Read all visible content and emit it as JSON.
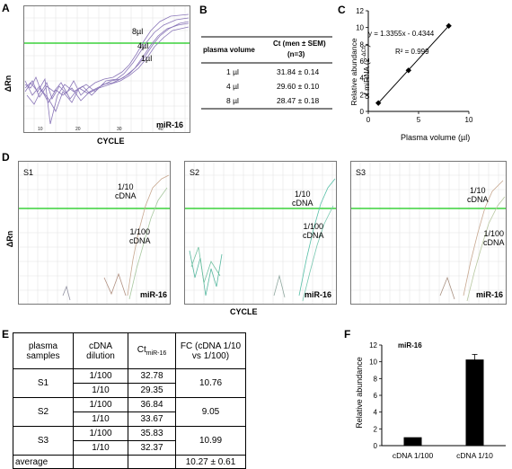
{
  "panel_labels": {
    "a": "A",
    "b": "B",
    "c": "C",
    "d": "D",
    "e": "E",
    "f": "F"
  },
  "panelA": {
    "y_axis": "ΔRn",
    "x_axis": "CYCLE",
    "curve_labels": [
      "8µl",
      "4µl",
      "1µl"
    ],
    "target": "miR-16",
    "colors": {
      "threshold": "#3cd23c",
      "curves": "#8a76b8"
    }
  },
  "panelB": {
    "headers": [
      "plasma volume",
      "Ct (men ± SEM)",
      "(n=3)"
    ],
    "rows": [
      {
        "volume": "1 µl",
        "ct": "31.84 ± 0.14"
      },
      {
        "volume": "4 µl",
        "ct": "29.60 ± 0.10"
      },
      {
        "volume": "8 µl",
        "ct": "28.47 ± 0.18"
      }
    ]
  },
  "panelC": {
    "equation": "y = 1.3355x - 0.4344",
    "r2": "R² = 0.999",
    "ylabel_line1": "Relative abundance",
    "ylabel_line2": "of miRNA (2",
    "ylabel_sup": "-ΔCt",
    "ylabel_end": ")",
    "xlabel": "Plasma volume (µl)"
  },
  "panelD": {
    "y_axis": "ΔRn",
    "x_axis": "CYCLE",
    "panels": [
      {
        "name": "S1",
        "label_high": "1/10",
        "label_high2": "cDNA",
        "label_low": "1/100",
        "label_low2": "cDNA",
        "target": "miR-16"
      },
      {
        "name": "S2",
        "label_high": "1/10",
        "label_high2": "cDNA",
        "label_low": "1/100",
        "label_low2": "cDNA",
        "target": "miR-16"
      },
      {
        "name": "S3",
        "label_high": "1/10",
        "label_high2": "cDNA",
        "label_low": "1/100",
        "label_low2": "cDNA",
        "target": "miR-16"
      }
    ]
  },
  "panelE": {
    "h1": "plasma",
    "h1b": "samples",
    "h2": "cDNA",
    "h2b": "dilution",
    "h3": "Ct",
    "h3sub": "miR-16",
    "h4": "FC (cDNA 1/10",
    "h4b": "vs 1/100)",
    "rows": [
      {
        "sample": "S1",
        "d1": "1/100",
        "c1": "32.78",
        "d2": "1/10",
        "c2": "29.35",
        "fc": "10.76"
      },
      {
        "sample": "S2",
        "d1": "1/100",
        "c1": "36.84",
        "d2": "1/10",
        "c2": "33.67",
        "fc": "9.05"
      },
      {
        "sample": "S3",
        "d1": "1/100",
        "c1": "35.83",
        "d2": "1/10",
        "c2": "32.37",
        "fc": "10.99"
      }
    ],
    "avg_label": "average",
    "avg_value": "10.27 ± 0.61"
  },
  "chart_data": [
    {
      "type": "scatter",
      "panel": "C",
      "x": [
        1,
        4,
        8
      ],
      "y": [
        1.0,
        4.9,
        10.2
      ],
      "trendline": "y = 1.3355x - 0.4344",
      "r2": "R² = 0.999",
      "xlabel": "Plasma volume (µl)",
      "ylabel": "Relative abundance of miRNA (2-ΔCt)",
      "xlim": [
        0,
        10
      ],
      "ylim": [
        0,
        12
      ],
      "xticks": [
        "0",
        "5",
        "10"
      ],
      "yticks": [
        "0",
        "2",
        "4",
        "6",
        "8",
        "10",
        "12"
      ]
    },
    {
      "type": "bar",
      "panel": "F",
      "title": "miR-16",
      "categories": [
        "cDNA 1/100",
        "cDNA 1/10"
      ],
      "values": [
        1.0,
        10.27
      ],
      "errors": [
        0,
        0.61
      ],
      "ylabel": "Relative abundance",
      "ylim": [
        0,
        12
      ],
      "yticks": [
        "0",
        "2",
        "4",
        "6",
        "8",
        "10",
        "12"
      ]
    }
  ]
}
